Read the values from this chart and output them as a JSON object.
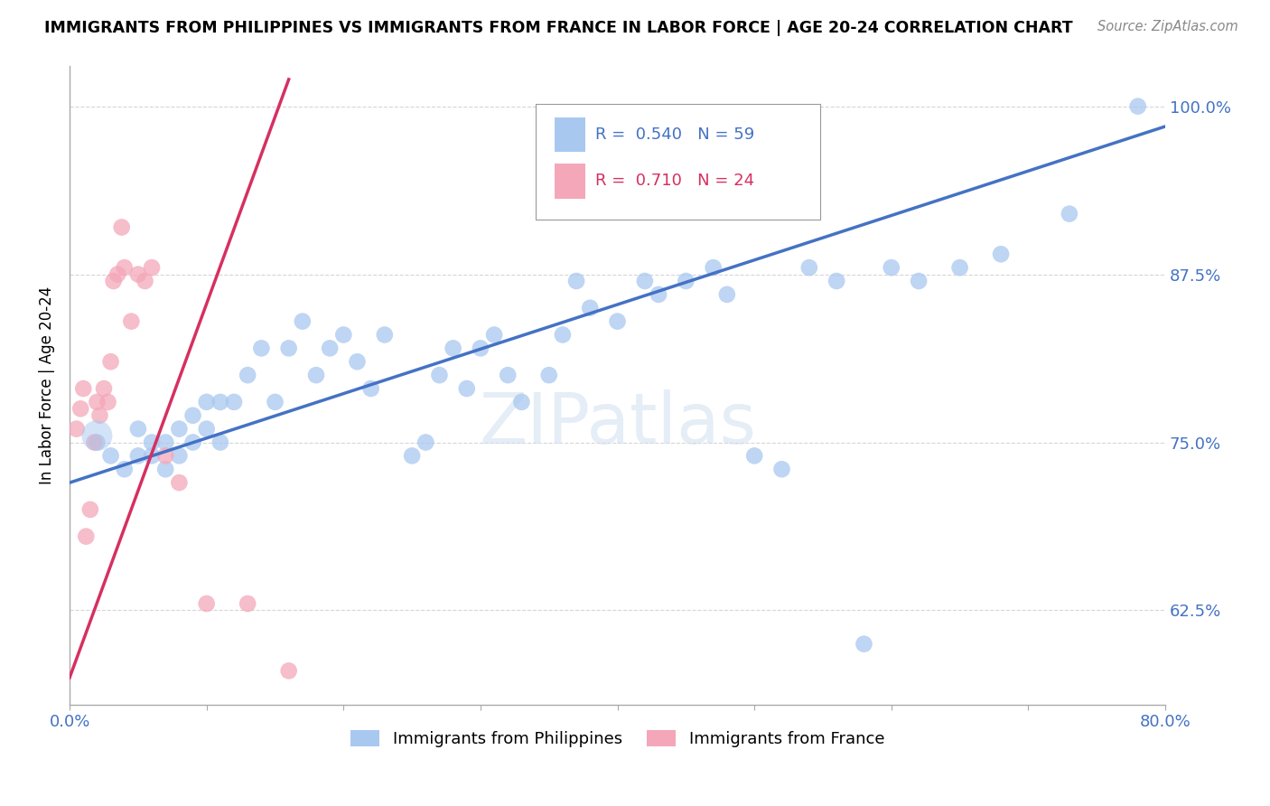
{
  "title": "IMMIGRANTS FROM PHILIPPINES VS IMMIGRANTS FROM FRANCE IN LABOR FORCE | AGE 20-24 CORRELATION CHART",
  "source": "Source: ZipAtlas.com",
  "ylabel": "In Labor Force | Age 20-24",
  "xlim": [
    0.0,
    0.8
  ],
  "ylim": [
    0.555,
    1.03
  ],
  "xticks": [
    0.0,
    0.1,
    0.2,
    0.3,
    0.4,
    0.5,
    0.6,
    0.7,
    0.8
  ],
  "ytick_positions": [
    0.625,
    0.75,
    0.875,
    1.0
  ],
  "ytick_labels": [
    "62.5%",
    "75.0%",
    "87.5%",
    "100.0%"
  ],
  "blue_color": "#a8c8f0",
  "blue_line_color": "#4472c4",
  "pink_color": "#f4a7b9",
  "pink_line_color": "#d63060",
  "R_blue": 0.54,
  "N_blue": 59,
  "R_pink": 0.71,
  "N_pink": 24,
  "legend_blue": "Immigrants from Philippines",
  "legend_pink": "Immigrants from France",
  "blue_x": [
    0.02,
    0.03,
    0.04,
    0.05,
    0.05,
    0.06,
    0.06,
    0.07,
    0.07,
    0.08,
    0.08,
    0.09,
    0.09,
    0.1,
    0.1,
    0.11,
    0.11,
    0.12,
    0.13,
    0.14,
    0.15,
    0.16,
    0.17,
    0.18,
    0.19,
    0.2,
    0.21,
    0.22,
    0.23,
    0.25,
    0.26,
    0.27,
    0.28,
    0.29,
    0.3,
    0.31,
    0.32,
    0.33,
    0.35,
    0.36,
    0.37,
    0.38,
    0.4,
    0.42,
    0.43,
    0.45,
    0.47,
    0.48,
    0.5,
    0.52,
    0.54,
    0.56,
    0.58,
    0.6,
    0.62,
    0.65,
    0.68,
    0.73,
    0.78
  ],
  "blue_y": [
    0.75,
    0.74,
    0.73,
    0.76,
    0.74,
    0.75,
    0.74,
    0.75,
    0.73,
    0.76,
    0.74,
    0.75,
    0.77,
    0.76,
    0.78,
    0.78,
    0.75,
    0.78,
    0.8,
    0.82,
    0.78,
    0.82,
    0.84,
    0.8,
    0.82,
    0.83,
    0.81,
    0.79,
    0.83,
    0.74,
    0.75,
    0.8,
    0.82,
    0.79,
    0.82,
    0.83,
    0.8,
    0.78,
    0.8,
    0.83,
    0.87,
    0.85,
    0.84,
    0.87,
    0.86,
    0.87,
    0.88,
    0.86,
    0.74,
    0.73,
    0.88,
    0.87,
    0.6,
    0.88,
    0.87,
    0.88,
    0.89,
    0.92,
    1.0
  ],
  "pink_x": [
    0.005,
    0.008,
    0.01,
    0.012,
    0.015,
    0.018,
    0.02,
    0.022,
    0.025,
    0.028,
    0.03,
    0.032,
    0.035,
    0.038,
    0.04,
    0.045,
    0.05,
    0.055,
    0.06,
    0.07,
    0.08,
    0.1,
    0.13,
    0.16
  ],
  "pink_y": [
    0.76,
    0.775,
    0.79,
    0.68,
    0.7,
    0.75,
    0.78,
    0.77,
    0.79,
    0.78,
    0.81,
    0.87,
    0.875,
    0.91,
    0.88,
    0.84,
    0.875,
    0.87,
    0.88,
    0.74,
    0.72,
    0.63,
    0.63,
    0.58
  ],
  "pink_line_x": [
    0.0,
    0.16
  ],
  "pink_line_y": [
    0.575,
    1.02
  ],
  "blue_line_x": [
    0.0,
    0.8
  ],
  "blue_line_y": [
    0.72,
    0.985
  ]
}
